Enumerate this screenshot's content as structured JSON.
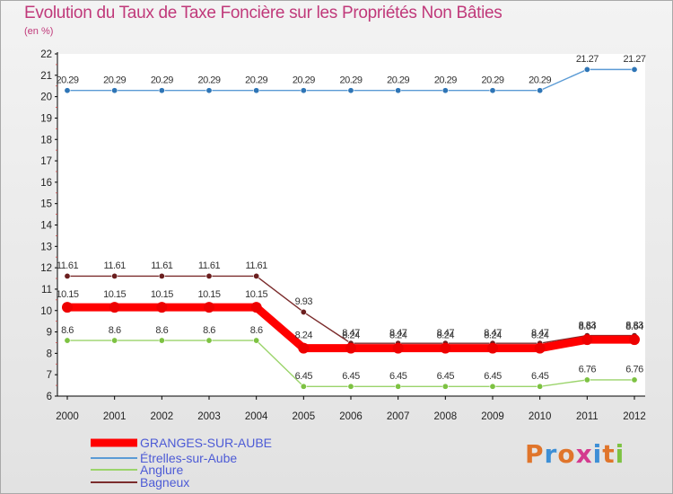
{
  "title": "Evolution du Taux de Taxe Foncière sur les Propriétés Non Bâties",
  "unit": "(en %)",
  "brand": {
    "letters": [
      "P",
      "r",
      "o",
      "x",
      "i",
      "t",
      "i"
    ],
    "colors": [
      "#e0752b",
      "#3d8fd6",
      "#e0752b",
      "#d43a8e",
      "#3d8fd6",
      "#e0752b",
      "#7dc242"
    ]
  },
  "chart_data": {
    "type": "line",
    "title": "Evolution du Taux de Taxe Foncière sur les Propriétés Non Bâties",
    "ylabel": "(en %)",
    "xlabel": "",
    "ylim": [
      6,
      22
    ],
    "yticks": [
      "6",
      "7",
      "8",
      "9",
      "10",
      "11",
      "12",
      "13",
      "14",
      "15",
      "16",
      "17",
      "18",
      "19",
      "20",
      "21",
      "22"
    ],
    "categories": [
      "2000",
      "2001",
      "2002",
      "2003",
      "2004",
      "2005",
      "2006",
      "2007",
      "2008",
      "2009",
      "2010",
      "2011",
      "2012"
    ],
    "series": [
      {
        "name": "Étrelles-sur-Aube",
        "color": "#5b9bd5",
        "marker": "#2e75b6",
        "values": [
          20.29,
          20.29,
          20.29,
          20.29,
          20.29,
          20.29,
          20.29,
          20.29,
          20.29,
          20.29,
          20.29,
          21.27,
          21.27
        ],
        "labels": [
          "20.29",
          "20.29",
          "20.29",
          "20.29",
          "20.29",
          "20.29",
          "20.29",
          "20.29",
          "20.29",
          "20.29",
          "20.29",
          "21.27",
          "21.27"
        ]
      },
      {
        "name": "Bagneux",
        "color": "#7b2c2c",
        "marker": "#6b1f1f",
        "values": [
          11.61,
          11.61,
          11.61,
          11.61,
          11.61,
          9.93,
          8.47,
          8.47,
          8.47,
          8.47,
          8.47,
          8.83,
          8.83
        ],
        "labels": [
          "11.61",
          "11.61",
          "11.61",
          "11.61",
          "11.61",
          "9.93",
          "8.47",
          "8.47",
          "8.47",
          "8.47",
          "8.47",
          "8.83",
          "8.83"
        ]
      },
      {
        "name": "GRANGES-SUR-AUBE",
        "color": "#ff0000",
        "marker": "#ee0000",
        "values": [
          10.15,
          10.15,
          10.15,
          10.15,
          10.15,
          8.24,
          8.24,
          8.24,
          8.24,
          8.24,
          8.24,
          8.64,
          8.64
        ],
        "labels": [
          "10.15",
          "10.15",
          "10.15",
          "10.15",
          "10.15",
          "8.24",
          "8.24",
          "8.24",
          "8.24",
          "8.24",
          "8.24",
          "8.64",
          "8.64"
        ]
      },
      {
        "name": "Anglure",
        "color": "#9bd46b",
        "marker": "#7dc242",
        "values": [
          8.6,
          8.6,
          8.6,
          8.6,
          8.6,
          6.45,
          6.45,
          6.45,
          6.45,
          6.45,
          6.45,
          6.76,
          6.76
        ],
        "labels": [
          "8.6",
          "8.6",
          "8.6",
          "8.6",
          "8.6",
          "6.45",
          "6.45",
          "6.45",
          "6.45",
          "6.45",
          "6.45",
          "6.76",
          "6.76"
        ]
      }
    ],
    "legend": [
      "GRANGES-SUR-AUBE",
      "Étrelles-sur-Aube",
      "Anglure",
      "Bagneux"
    ],
    "legend_position": "bottom-left"
  }
}
